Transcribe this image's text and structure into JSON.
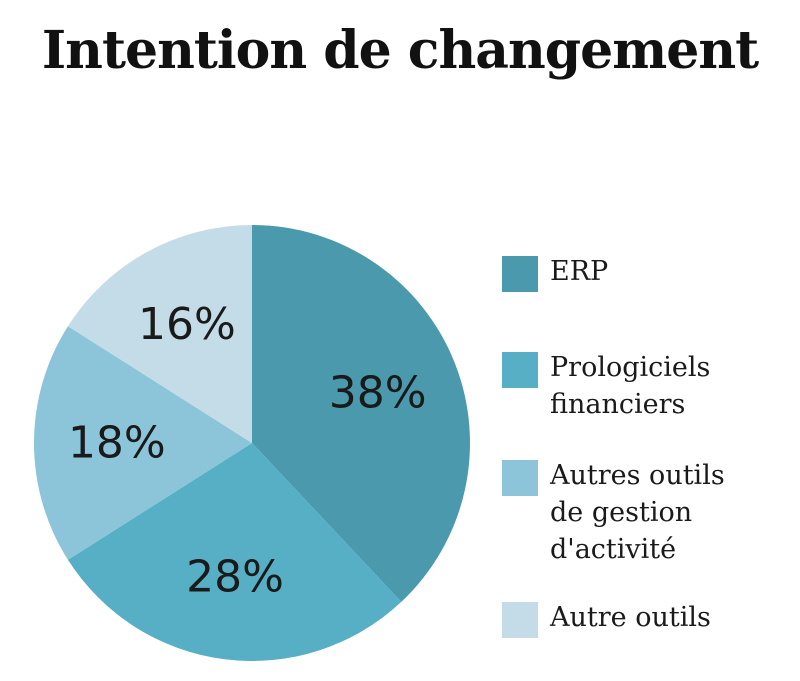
{
  "chart_data": {
    "type": "pie",
    "title": "Intention de changement",
    "categories": [
      "ERP",
      "Prologiciels\nfinanciers",
      "Autres outils\nde gestion\nd'activité",
      "Autre outils"
    ],
    "values": [
      38,
      28,
      18,
      16
    ],
    "labels": [
      "38%",
      "28%",
      "18%",
      "16%"
    ],
    "colors": [
      "#4A99AD",
      "#57AFC6",
      "#8CC5D9",
      "#C4DCE7"
    ],
    "legend_position": "right"
  }
}
